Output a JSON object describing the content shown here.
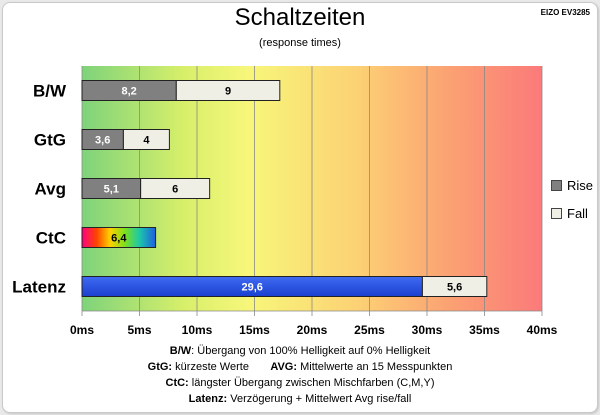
{
  "header": {
    "title": "Schaltzeiten",
    "subtitle": "(response times)",
    "brand": "EIZO EV3285"
  },
  "legend": {
    "rise_label": "Rise",
    "fall_label": "Fall",
    "rise_color": "#808080",
    "fall_color": "#efefe6"
  },
  "notes": {
    "line1_key": "B/W",
    "line1_text": ":  Übergang von 100% Helligkeit auf 0% Helligkeit",
    "line2_key1": "GtG:",
    "line2_text1": " kürzeste  Werte",
    "line2_key2": "AVG:",
    "line2_text2": " Mittelwerte  an 15 Messpunkten",
    "line3_key": "CtC:",
    "line3_text": " längster Übergang  zwischen Mischfarben (C,M,Y)",
    "line4_key": "Latenz:",
    "line4_text": " Verzögerung  + Mittelwert Avg rise/fall"
  },
  "chart_data": {
    "type": "bar",
    "orientation": "horizontal",
    "stacked": true,
    "title": "Schaltzeiten",
    "subtitle": "(response times)",
    "categories": [
      "B/W",
      "GtG",
      "Avg",
      "CtC",
      "Latenz"
    ],
    "series": [
      {
        "name": "Rise",
        "values": [
          8.2,
          3.6,
          5.1,
          6.4,
          29.6
        ]
      },
      {
        "name": "Fall",
        "values": [
          9,
          4,
          6,
          null,
          5.6
        ]
      }
    ],
    "value_labels": [
      [
        "8,2",
        "9"
      ],
      [
        "3,6",
        "4"
      ],
      [
        "5,1",
        "6"
      ],
      [
        "6,4",
        ""
      ],
      [
        "29,6",
        "5,6"
      ]
    ],
    "xlim": [
      0,
      40
    ],
    "x_ticks": [
      0,
      5,
      10,
      15,
      20,
      25,
      30,
      35,
      40
    ],
    "x_tick_labels": [
      "0ms",
      "5ms",
      "10ms",
      "15ms",
      "20ms",
      "25ms",
      "30ms",
      "35ms",
      "40ms"
    ],
    "grid": true,
    "legend_position": "right",
    "background": "green-yellow-red gradient",
    "colors": {
      "rise": "#808080",
      "fall": "#efefe6",
      "latency": "#2453e6",
      "ctc": "rainbow gradient"
    }
  }
}
